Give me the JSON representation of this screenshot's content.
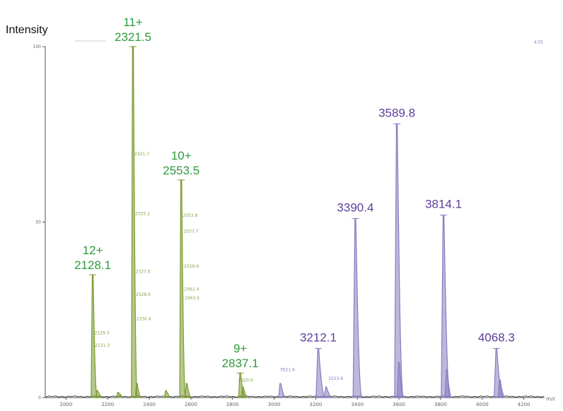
{
  "chart_data": {
    "type": "line",
    "ylabel": "Intensity",
    "xlabel": "m/z",
    "xlim": [
      1900,
      4300
    ],
    "ylim": [
      0,
      100
    ],
    "y_ticks": [
      {
        "value": 0,
        "label": "0"
      },
      {
        "value": 50,
        "label": "50"
      },
      {
        "value": 100,
        "label": "100"
      }
    ],
    "x_ticks": [
      {
        "value": 2000,
        "label": "2000"
      },
      {
        "value": 2200,
        "label": "2200"
      },
      {
        "value": 2400,
        "label": "2400"
      },
      {
        "value": 2600,
        "label": "2600"
      },
      {
        "value": 2800,
        "label": "2800"
      },
      {
        "value": 3000,
        "label": "3000"
      },
      {
        "value": 3200,
        "label": "3200"
      },
      {
        "value": 3400,
        "label": "3400"
      },
      {
        "value": 3600,
        "label": "3600"
      },
      {
        "value": 3800,
        "label": "3800"
      },
      {
        "value": 4000,
        "label": "4000"
      },
      {
        "value": 4200,
        "label": "4200"
      }
    ],
    "max_intensity_label": "435",
    "series": [
      {
        "color": "#7a9a2e",
        "label_color": "#2e9a3c",
        "peaks": [
          {
            "mz": 2128.1,
            "intensity": 35,
            "charge": "12+",
            "label": "2128.1"
          },
          {
            "mz": 2321.5,
            "intensity": 100,
            "charge": "11+",
            "label": "2321.5"
          },
          {
            "mz": 2553.5,
            "intensity": 62,
            "charge": "10+",
            "label": "2553.5"
          },
          {
            "mz": 2837.1,
            "intensity": 7,
            "charge": "9+",
            "label": "2837.1"
          }
        ],
        "minor_labels": [
          {
            "mz": 2129.3,
            "intensity": 18,
            "text": "2129.3"
          },
          {
            "mz": 2131.3,
            "intensity": 14.5,
            "text": "2131.3"
          },
          {
            "mz": 2321.7,
            "intensity": 69,
            "text": "2321.7"
          },
          {
            "mz": 2325.2,
            "intensity": 52,
            "text": "2325.2"
          },
          {
            "mz": 2327.0,
            "intensity": 35.5,
            "text": "2327.0"
          },
          {
            "mz": 2328.6,
            "intensity": 29,
            "text": "2328.6"
          },
          {
            "mz": 2330.4,
            "intensity": 22,
            "text": "2330.4"
          },
          {
            "mz": 2553.8,
            "intensity": 51.5,
            "text": "2553.8"
          },
          {
            "mz": 2557.7,
            "intensity": 47,
            "text": "2557.7"
          },
          {
            "mz": 2559.6,
            "intensity": 37,
            "text": "2559.6"
          },
          {
            "mz": 2561.4,
            "intensity": 30.5,
            "text": "2561.4"
          },
          {
            "mz": 2563.5,
            "intensity": 28,
            "text": "2563.5"
          },
          {
            "mz": 2820.0,
            "intensity": 4.5,
            "text": "2820.0"
          }
        ]
      },
      {
        "color": "#8a7cc0",
        "label_color": "#5b3f9a",
        "peaks": [
          {
            "mz": 3212.1,
            "intensity": 14,
            "label": "3212.1"
          },
          {
            "mz": 3390.4,
            "intensity": 51,
            "label": "3390.4"
          },
          {
            "mz": 3589.8,
            "intensity": 78,
            "label": "3589.8"
          },
          {
            "mz": 3814.1,
            "intensity": 52,
            "label": "3814.1"
          },
          {
            "mz": 4068.3,
            "intensity": 14,
            "label": "4068.3"
          }
        ],
        "minor_labels": [
          {
            "mz": 3021.6,
            "intensity": 7.5,
            "text": "3021.6"
          },
          {
            "mz": 3253.6,
            "intensity": 5,
            "text": "3253.6"
          }
        ]
      }
    ],
    "minor_peaks_unlabeled": [
      {
        "mz": 3030,
        "intensity": 4
      },
      {
        "mz": 3250,
        "intensity": 3
      },
      {
        "mz": 3600,
        "intensity": 10
      },
      {
        "mz": 3830,
        "intensity": 8
      },
      {
        "mz": 4085,
        "intensity": 5
      }
    ]
  }
}
